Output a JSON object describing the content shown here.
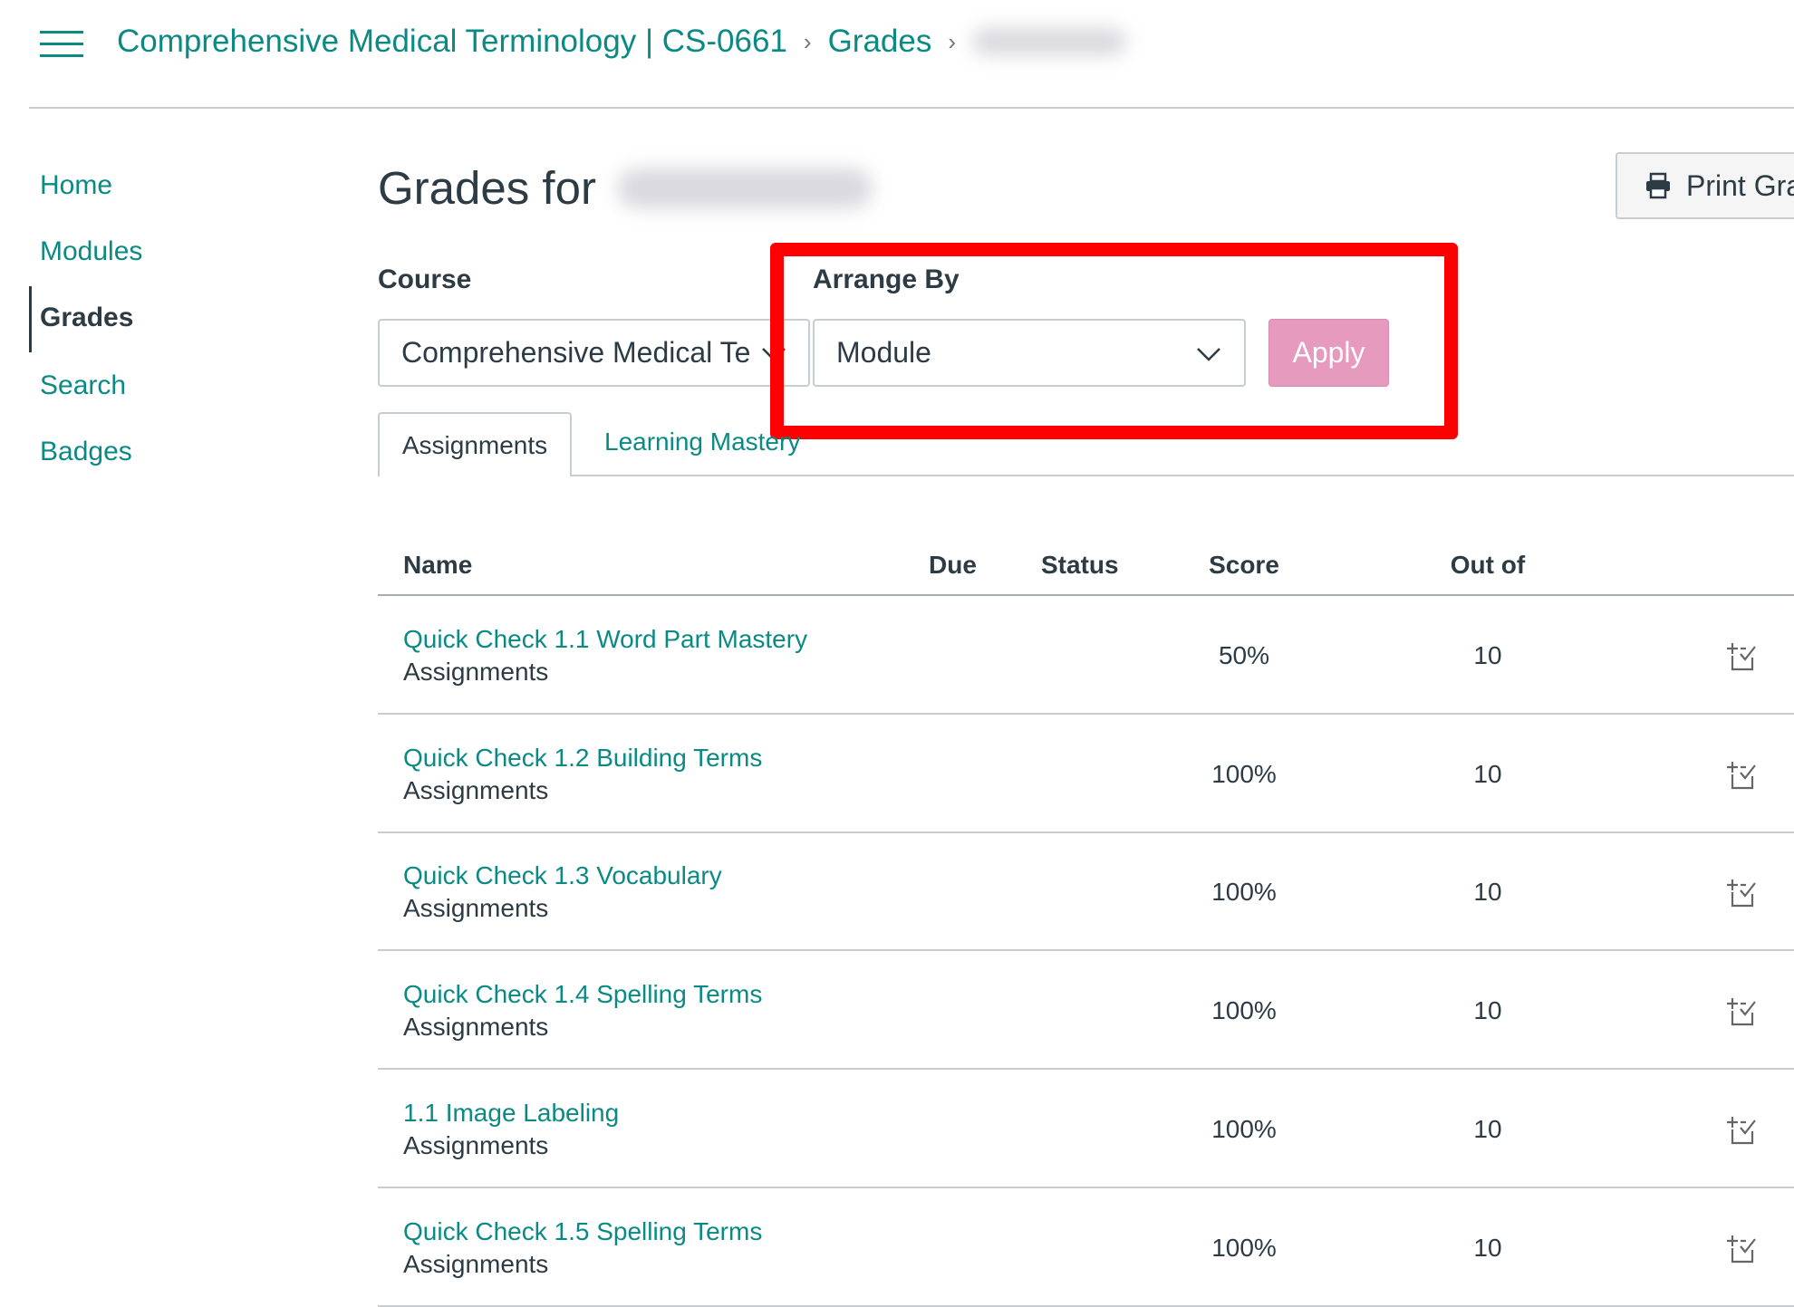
{
  "breadcrumb": {
    "course": "Comprehensive Medical Terminology | CS-0661",
    "page": "Grades"
  },
  "sidebar": {
    "items": [
      {
        "label": "Home"
      },
      {
        "label": "Modules"
      },
      {
        "label": "Grades",
        "active": true
      },
      {
        "label": "Search"
      },
      {
        "label": "Badges"
      }
    ]
  },
  "main": {
    "title": "Grades for",
    "print_label": "Print Gra",
    "course_label": "Course",
    "course_value": "Comprehensive Medical Te",
    "arrange_label": "Arrange By",
    "arrange_value": "Module",
    "apply_label": "Apply",
    "tabs": [
      {
        "label": "Assignments"
      },
      {
        "label": "Learning Mastery"
      }
    ],
    "columns": {
      "name": "Name",
      "due": "Due",
      "status": "Status",
      "score": "Score",
      "outof": "Out of"
    },
    "rows": [
      {
        "name": "Quick Check 1.1 Word Part Mastery",
        "group": "Assignments",
        "score": "50%",
        "outof": "10"
      },
      {
        "name": "Quick Check 1.2 Building Terms",
        "group": "Assignments",
        "score": "100%",
        "outof": "10"
      },
      {
        "name": "Quick Check 1.3 Vocabulary",
        "group": "Assignments",
        "score": "100%",
        "outof": "10"
      },
      {
        "name": "Quick Check 1.4 Spelling Terms",
        "group": "Assignments",
        "score": "100%",
        "outof": "10"
      },
      {
        "name": "1.1 Image Labeling",
        "group": "Assignments",
        "score": "100%",
        "outof": "10"
      },
      {
        "name": "Quick Check 1.5 Spelling Terms",
        "group": "Assignments",
        "score": "100%",
        "outof": "10"
      }
    ]
  },
  "colors": {
    "accent": "#0b8a84",
    "apply": "#e69abe",
    "highlight": "#ff0000",
    "text": "#2d3b45"
  },
  "icons": {
    "menu": "hamburger-icon",
    "print": "printer-icon",
    "row": "what-if-score-icon",
    "select": "chevron-down-icon"
  }
}
